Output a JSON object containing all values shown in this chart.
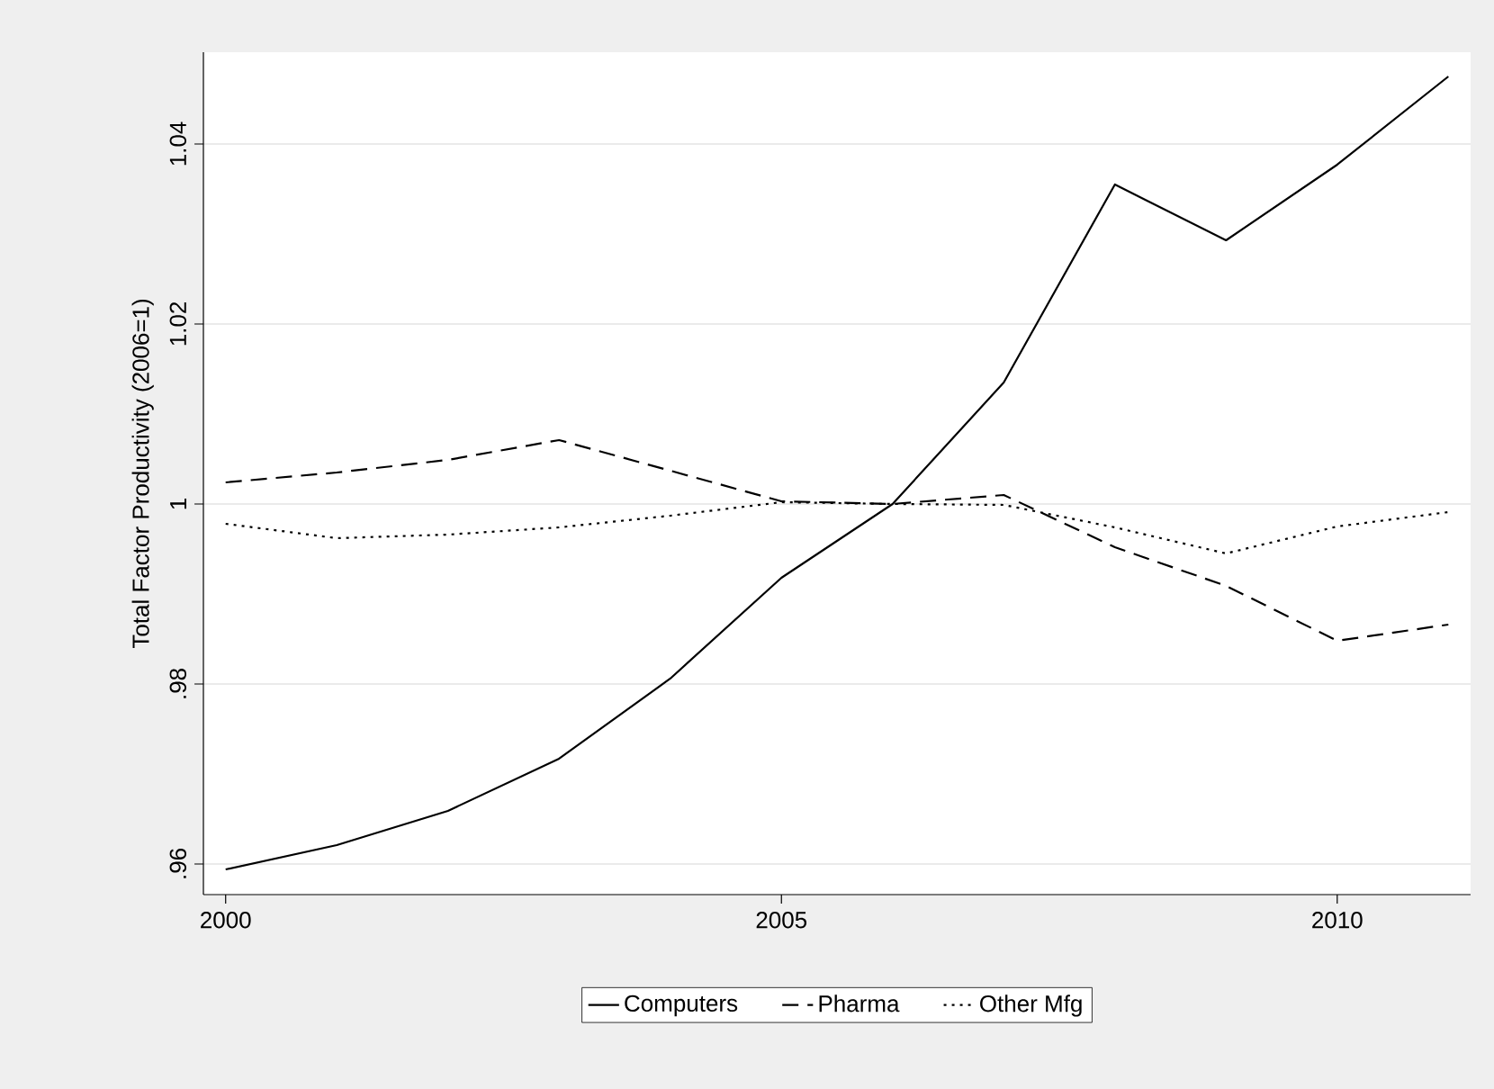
{
  "chart_data": {
    "type": "line",
    "ylabel": "Total Factor Productivity (2006=1)",
    "x": [
      2000,
      2001,
      2002,
      2003,
      2004,
      2005,
      2006,
      2007,
      2008,
      2009,
      2010,
      2011
    ],
    "series": [
      {
        "name": "Computers",
        "color": "#000000",
        "line_style": "solid",
        "values": [
          0.9594,
          0.9621,
          0.9659,
          0.9717,
          0.9806,
          0.9918,
          1.0,
          1.0135,
          1.0355,
          1.0293,
          1.0377,
          1.0475
        ]
      },
      {
        "name": "Pharma",
        "color": "#000000",
        "line_style": "dashed",
        "values": [
          1.0024,
          1.0035,
          1.0049,
          1.0071,
          1.0037,
          1.0003,
          1.0,
          1.001,
          0.9952,
          0.9909,
          0.9848,
          0.9866
        ]
      },
      {
        "name": "Other Mfg",
        "color": "#000000",
        "line_style": "dotted",
        "values": [
          0.9978,
          0.9962,
          0.9966,
          0.9974,
          0.9987,
          1.0002,
          1.0,
          0.9999,
          0.9974,
          0.9945,
          0.9975,
          0.9991
        ]
      }
    ],
    "xlim": [
      1999.8,
      2011.2
    ],
    "ylim": [
      0.9566,
      1.0502
    ],
    "xticks": [
      2000,
      2005,
      2010
    ],
    "yticks": [
      {
        "value": 0.96,
        "label": ".96"
      },
      {
        "value": 0.98,
        "label": ".98"
      },
      1,
      1.02,
      1.04
    ],
    "grid": "y",
    "legend": "bottom",
    "marker": "none"
  }
}
